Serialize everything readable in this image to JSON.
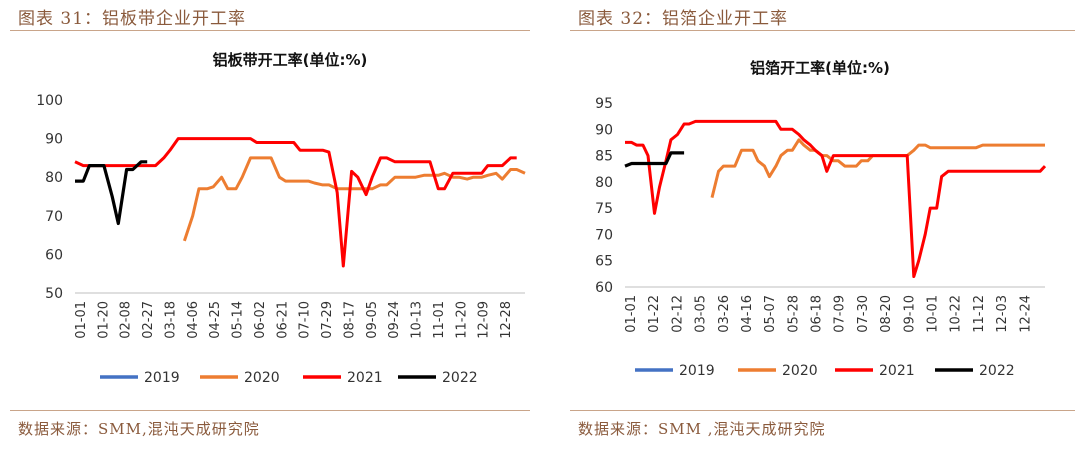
{
  "left_panel": {
    "figure_title": "图表 31：铝板带企业开工率",
    "source": "数据来源：SMM,混沌天成研究院"
  },
  "right_panel": {
    "figure_title": "图表 32：铝箔企业开工率",
    "source": "数据来源：SMM ,混沌天成研究院"
  },
  "colors": {
    "2019": "#4472c4",
    "2020": "#ed7d31",
    "2021": "#ff0000",
    "2022": "#000000",
    "accent": "#8a5a3c",
    "rule": "#c9a58a"
  },
  "chart_data": [
    {
      "type": "line",
      "title": "铝板带开工率(单位:%)",
      "xlabel": "",
      "ylabel": "",
      "ylim": [
        50,
        100
      ],
      "yticks": [
        "50",
        "60",
        "70",
        "80",
        "90",
        "100"
      ],
      "x_ticks": [
        "01-01",
        "01-20",
        "02-08",
        "02-27",
        "03-18",
        "04-06",
        "04-25",
        "05-14",
        "06-02",
        "06-21",
        "07-10",
        "07-29",
        "08-17",
        "09-05",
        "09-24",
        "10-13",
        "11-01",
        "11-20",
        "12-09",
        "12-28"
      ],
      "grid": false,
      "legend": "bottom",
      "series": [
        {
          "name": "2019",
          "values": []
        },
        {
          "name": "2020",
          "values": [
            [
              54,
              63.5
            ],
            [
              58,
              70
            ],
            [
              61,
              77
            ],
            [
              65,
              77
            ],
            [
              68,
              77.5
            ],
            [
              72,
              80
            ],
            [
              75,
              77
            ],
            [
              79,
              77
            ],
            [
              82,
              80
            ],
            [
              86,
              85
            ],
            [
              89,
              85
            ],
            [
              93,
              85
            ],
            [
              96,
              85
            ],
            [
              100,
              80
            ],
            [
              103,
              79
            ],
            [
              107,
              79
            ],
            [
              110,
              79
            ],
            [
              114,
              79
            ],
            [
              117,
              78.5
            ],
            [
              121,
              78
            ],
            [
              124,
              78
            ],
            [
              128,
              77
            ],
            [
              131,
              77
            ],
            [
              135,
              77
            ],
            [
              138,
              77
            ],
            [
              142,
              77
            ],
            [
              145,
              77
            ],
            [
              149,
              78
            ],
            [
              152,
              78
            ],
            [
              156,
              80
            ],
            [
              159,
              80
            ],
            [
              163,
              80
            ],
            [
              166,
              80
            ],
            [
              170,
              80.5
            ],
            [
              173,
              80.5
            ],
            [
              177,
              80.5
            ],
            [
              180,
              81
            ],
            [
              184,
              80
            ],
            [
              187,
              80
            ],
            [
              191,
              79.5
            ],
            [
              194,
              80
            ],
            [
              198,
              80
            ],
            [
              201,
              80.5
            ],
            [
              205,
              81
            ],
            [
              208,
              79.5
            ],
            [
              212,
              82
            ],
            [
              215,
              82
            ],
            [
              219,
              81
            ]
          ]
        },
        {
          "name": "2021",
          "values": [
            [
              1,
              84
            ],
            [
              5,
              83
            ],
            [
              8,
              83
            ],
            [
              12,
              83
            ],
            [
              15,
              83
            ],
            [
              19,
              83
            ],
            [
              22,
              83
            ],
            [
              26,
              83
            ],
            [
              29,
              83
            ],
            [
              33,
              83
            ],
            [
              37,
              83
            ],
            [
              40,
              83
            ],
            [
              44,
              85
            ],
            [
              47,
              87
            ],
            [
              51,
              90
            ],
            [
              54,
              90
            ],
            [
              58,
              90
            ],
            [
              61,
              90
            ],
            [
              65,
              90
            ],
            [
              68,
              90
            ],
            [
              72,
              90
            ],
            [
              75,
              90
            ],
            [
              79,
              90
            ],
            [
              82,
              90
            ],
            [
              86,
              90
            ],
            [
              89,
              89
            ],
            [
              93,
              89
            ],
            [
              96,
              89
            ],
            [
              100,
              89
            ],
            [
              103,
              89
            ],
            [
              107,
              89
            ],
            [
              110,
              87
            ],
            [
              114,
              87
            ],
            [
              117,
              87
            ],
            [
              121,
              87
            ],
            [
              124,
              86.5
            ],
            [
              128,
              76
            ],
            [
              131,
              57
            ],
            [
              135,
              81.5
            ],
            [
              138,
              80
            ],
            [
              142,
              75.5
            ],
            [
              145,
              80
            ],
            [
              149,
              85
            ],
            [
              152,
              85
            ],
            [
              156,
              84
            ],
            [
              159,
              84
            ],
            [
              163,
              84
            ],
            [
              166,
              84
            ],
            [
              170,
              84
            ],
            [
              173,
              84
            ],
            [
              177,
              77
            ],
            [
              180,
              77
            ],
            [
              184,
              81
            ],
            [
              187,
              81
            ],
            [
              191,
              81
            ],
            [
              194,
              81
            ],
            [
              198,
              81
            ],
            [
              201,
              83
            ],
            [
              205,
              83
            ],
            [
              208,
              83
            ],
            [
              212,
              85
            ],
            [
              215,
              85
            ]
          ]
        },
        {
          "name": "2022",
          "values": [
            [
              1,
              79
            ],
            [
              5,
              79
            ],
            [
              8,
              83
            ],
            [
              12,
              83
            ],
            [
              15,
              83
            ],
            [
              19,
              75
            ],
            [
              22,
              68
            ],
            [
              26,
              82
            ],
            [
              29,
              82
            ],
            [
              33,
              84
            ],
            [
              36,
              84
            ]
          ]
        }
      ]
    },
    {
      "type": "line",
      "title": "铝箔开工率(单位:%)",
      "xlabel": "",
      "ylabel": "",
      "ylim": [
        60,
        95
      ],
      "yticks": [
        "60",
        "65",
        "70",
        "75",
        "80",
        "85",
        "90",
        "95"
      ],
      "x_ticks": [
        "01-01",
        "01-22",
        "02-12",
        "03-05",
        "03-26",
        "04-16",
        "05-07",
        "05-28",
        "06-18",
        "07-09",
        "07-30",
        "08-20",
        "09-10",
        "10-01",
        "10-22",
        "11-12",
        "12-03",
        "12-24"
      ],
      "grid": false,
      "legend": "bottom",
      "series": [
        {
          "name": "2019",
          "values": []
        },
        {
          "name": "2020",
          "values": [
            [
              54,
              77
            ],
            [
              58,
              82
            ],
            [
              61,
              83
            ],
            [
              65,
              83
            ],
            [
              68,
              83
            ],
            [
              72,
              86
            ],
            [
              75,
              86
            ],
            [
              79,
              86
            ],
            [
              82,
              84
            ],
            [
              86,
              83
            ],
            [
              89,
              81
            ],
            [
              93,
              83
            ],
            [
              96,
              85
            ],
            [
              100,
              86
            ],
            [
              103,
              86
            ],
            [
              107,
              88
            ],
            [
              110,
              87
            ],
            [
              114,
              86
            ],
            [
              117,
              86
            ],
            [
              121,
              85
            ],
            [
              124,
              85
            ],
            [
              128,
              84
            ],
            [
              131,
              84
            ],
            [
              135,
              83
            ],
            [
              138,
              83
            ],
            [
              142,
              83
            ],
            [
              145,
              84
            ],
            [
              149,
              84
            ],
            [
              152,
              85
            ],
            [
              156,
              85
            ],
            [
              159,
              85
            ],
            [
              163,
              85
            ],
            [
              166,
              85
            ],
            [
              170,
              85
            ],
            [
              173,
              85
            ],
            [
              177,
              86
            ],
            [
              180,
              87
            ],
            [
              184,
              87
            ],
            [
              187,
              86.5
            ],
            [
              191,
              86.5
            ],
            [
              194,
              86.5
            ],
            [
              198,
              86.5
            ],
            [
              201,
              86.5
            ],
            [
              205,
              86.5
            ],
            [
              208,
              86.5
            ],
            [
              212,
              86.5
            ],
            [
              215,
              86.5
            ],
            [
              219,
              87
            ],
            [
              222,
              87
            ],
            [
              226,
              87
            ],
            [
              229,
              87
            ],
            [
              233,
              87
            ],
            [
              236,
              87
            ],
            [
              240,
              87
            ],
            [
              243,
              87
            ],
            [
              247,
              87
            ],
            [
              250,
              87
            ],
            [
              254,
              87
            ],
            [
              257,
              87
            ]
          ]
        },
        {
          "name": "2021",
          "values": [
            [
              1,
              87.5
            ],
            [
              5,
              87.5
            ],
            [
              8,
              87
            ],
            [
              12,
              87
            ],
            [
              15,
              85
            ],
            [
              19,
              74
            ],
            [
              22,
              79
            ],
            [
              26,
              84
            ],
            [
              29,
              88
            ],
            [
              33,
              89
            ],
            [
              37,
              91
            ],
            [
              40,
              91
            ],
            [
              44,
              91.5
            ],
            [
              47,
              91.5
            ],
            [
              51,
              91.5
            ],
            [
              54,
              91.5
            ],
            [
              58,
              91.5
            ],
            [
              61,
              91.5
            ],
            [
              65,
              91.5
            ],
            [
              68,
              91.5
            ],
            [
              72,
              91.5
            ],
            [
              75,
              91.5
            ],
            [
              79,
              91.5
            ],
            [
              82,
              91.5
            ],
            [
              86,
              91.5
            ],
            [
              89,
              91.5
            ],
            [
              93,
              91.5
            ],
            [
              96,
              90
            ],
            [
              100,
              90
            ],
            [
              103,
              90
            ],
            [
              107,
              89
            ],
            [
              110,
              88
            ],
            [
              114,
              87
            ],
            [
              117,
              86
            ],
            [
              121,
              85
            ],
            [
              124,
              82
            ],
            [
              128,
              85
            ],
            [
              131,
              85
            ],
            [
              135,
              85
            ],
            [
              138,
              85
            ],
            [
              142,
              85
            ],
            [
              145,
              85
            ],
            [
              149,
              85
            ],
            [
              152,
              85
            ],
            [
              156,
              85
            ],
            [
              159,
              85
            ],
            [
              163,
              85
            ],
            [
              166,
              85
            ],
            [
              170,
              85
            ],
            [
              173,
              85
            ],
            [
              177,
              62
            ],
            [
              180,
              65
            ],
            [
              184,
              70
            ],
            [
              187,
              75
            ],
            [
              191,
              75
            ],
            [
              194,
              81
            ],
            [
              198,
              82
            ],
            [
              201,
              82
            ],
            [
              205,
              82
            ],
            [
              208,
              82
            ],
            [
              212,
              82
            ],
            [
              215,
              82
            ],
            [
              219,
              82
            ],
            [
              222,
              82
            ],
            [
              226,
              82
            ],
            [
              229,
              82
            ],
            [
              233,
              82
            ],
            [
              236,
              82
            ],
            [
              240,
              82
            ],
            [
              243,
              82
            ],
            [
              247,
              82
            ],
            [
              250,
              82
            ],
            [
              254,
              82
            ],
            [
              257,
              83
            ]
          ]
        },
        {
          "name": "2022",
          "values": [
            [
              1,
              83
            ],
            [
              5,
              83.5
            ],
            [
              8,
              83.5
            ],
            [
              12,
              83.5
            ],
            [
              15,
              83.5
            ],
            [
              19,
              83.5
            ],
            [
              22,
              83.5
            ],
            [
              26,
              83.5
            ],
            [
              29,
              85.5
            ],
            [
              33,
              85.5
            ],
            [
              37,
              85.5
            ]
          ]
        }
      ]
    }
  ]
}
